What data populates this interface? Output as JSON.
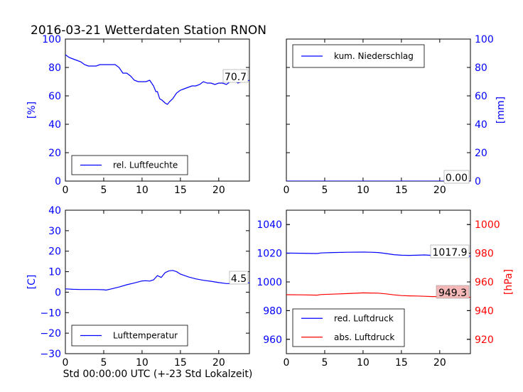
{
  "figure": {
    "title": "2016-03-21 Wetterdaten Station RNON",
    "xlabel": "Std 00:00:00 UTC (+-23 Std Lokalzeit)"
  },
  "colors": {
    "blue": "#0000ff",
    "red": "#ff0000"
  },
  "chart_data": [
    {
      "id": "humidity",
      "type": "line",
      "title": "",
      "xlabel": "",
      "ylabel": "[%]",
      "y_axis_side": "left",
      "xlim": [
        0,
        24
      ],
      "ylim": [
        0,
        100
      ],
      "x_ticks": [
        "0",
        "5",
        "10",
        "15",
        "20"
      ],
      "y_ticks": [
        "0",
        "20",
        "40",
        "60",
        "80",
        "100"
      ],
      "legend": {
        "placement": "lower-left",
        "entries": [
          "rel. Luftfeuchte"
        ]
      },
      "current_value": "70.7",
      "series": [
        {
          "name": "rel. Luftfeuchte",
          "color": "#0000ff",
          "x": [
            0,
            0.5,
            1,
            1.5,
            2,
            2.5,
            3,
            3.5,
            4,
            4.5,
            5,
            5.5,
            6,
            6.5,
            7,
            7.5,
            8,
            8.5,
            9,
            9.5,
            10,
            10.5,
            11,
            11.5,
            11.8,
            12,
            12.3,
            12.6,
            13,
            13.3,
            13.6,
            14,
            14.5,
            15,
            15.5,
            16,
            16.5,
            17,
            17.5,
            18,
            18.5,
            19,
            19.5,
            20,
            20.5,
            21,
            21.5,
            22,
            22.5,
            23,
            23.5,
            24
          ],
          "values": [
            89,
            87,
            86,
            85,
            84,
            82,
            81,
            81,
            81,
            82,
            82,
            82,
            82,
            82,
            80,
            76,
            76,
            74,
            71,
            70,
            70,
            70,
            71,
            67,
            63,
            63,
            58,
            57,
            55,
            54,
            56,
            58,
            62,
            64,
            65,
            66,
            67,
            67,
            68,
            70,
            69,
            69,
            68,
            69,
            69,
            68,
            70,
            71,
            69,
            70,
            70,
            71
          ]
        }
      ]
    },
    {
      "id": "precipitation",
      "type": "line",
      "title": "",
      "xlabel": "",
      "ylabel": "[mm]",
      "y_axis_side": "right",
      "xlim": [
        0,
        24
      ],
      "ylim": [
        0,
        100
      ],
      "x_ticks": [
        "0",
        "5",
        "10",
        "15",
        "20"
      ],
      "y_ticks": [
        "0",
        "20",
        "40",
        "60",
        "80",
        "100"
      ],
      "legend": {
        "placement": "top-left",
        "entries": [
          "kum. Niederschlag"
        ]
      },
      "current_value": "0.00",
      "series": [
        {
          "name": "kum. Niederschlag",
          "color": "#0000ff",
          "x": [
            0,
            24
          ],
          "values": [
            0,
            0
          ]
        }
      ]
    },
    {
      "id": "temperature",
      "type": "line",
      "title": "",
      "xlabel": "",
      "ylabel": "[C]",
      "y_axis_side": "left",
      "xlim": [
        0,
        24
      ],
      "ylim": [
        -30,
        40
      ],
      "x_ticks": [
        "0",
        "5",
        "10",
        "15",
        "20"
      ],
      "y_ticks": [
        "−30",
        "−20",
        "−10",
        "0",
        "10",
        "20",
        "30",
        "40"
      ],
      "legend": {
        "placement": "lower-left",
        "entries": [
          "Lufttemperatur"
        ]
      },
      "current_value": "4.5",
      "series": [
        {
          "name": "Lufttemperatur",
          "color": "#0000ff",
          "x": [
            0,
            1,
            2,
            3,
            4,
            5,
            5.3,
            6,
            7,
            8,
            9,
            10,
            10.5,
            11,
            11.5,
            12,
            12.5,
            13,
            13.5,
            14,
            14.5,
            15,
            16,
            17,
            18,
            19,
            20,
            21,
            22,
            23,
            24
          ],
          "values": [
            1.6,
            1.4,
            1.3,
            1.3,
            1.3,
            1.2,
            1.0,
            1.6,
            2.5,
            3.6,
            4.5,
            5.5,
            5.6,
            5.4,
            6.0,
            8.1,
            7.2,
            9.5,
            10.4,
            10.6,
            10.0,
            8.8,
            7.5,
            6.5,
            5.8,
            5.3,
            4.7,
            4.2,
            4.2,
            4.5,
            4.5
          ]
        }
      ]
    },
    {
      "id": "pressure",
      "type": "line",
      "title": "",
      "xlabel": "",
      "ylabel": "[hPa]",
      "dual_axis": true,
      "xlim": [
        0,
        24
      ],
      "ylim_left": [
        950,
        1050
      ],
      "ylim_right": [
        910,
        1010
      ],
      "x_ticks": [
        "0",
        "5",
        "10",
        "15",
        "20"
      ],
      "y_ticks_left": [
        "960",
        "980",
        "1000",
        "1020",
        "1040"
      ],
      "y_ticks_right": [
        "920",
        "940",
        "960",
        "980",
        "1000"
      ],
      "legend": {
        "placement": "lower-left",
        "entries": [
          "red. Luftdruck",
          "abs. Luftdruck"
        ]
      },
      "current_values": [
        "1017.9",
        "949.3"
      ],
      "series": [
        {
          "name": "red. Luftdruck",
          "color": "#0000ff",
          "axis": "left",
          "x": [
            0,
            2,
            4,
            4.5,
            6,
            8,
            10,
            11,
            12,
            13,
            14,
            15,
            16,
            17,
            18,
            19,
            20,
            21,
            22,
            23,
            24
          ],
          "values": [
            1020.1,
            1020.0,
            1019.8,
            1020.2,
            1020.5,
            1020.7,
            1020.8,
            1020.7,
            1020.5,
            1019.8,
            1019.0,
            1018.6,
            1018.5,
            1018.6,
            1018.8,
            1018.5,
            1018.2,
            1018.0,
            1018.0,
            1018.0,
            1017.9
          ]
        },
        {
          "name": "abs. Luftdruck",
          "color": "#ff0000",
          "axis": "right",
          "x": [
            0,
            2,
            4,
            4.5,
            6,
            8,
            10,
            11,
            12,
            13,
            14,
            15,
            16,
            17,
            18,
            19,
            20,
            21,
            22,
            23,
            24
          ],
          "values": [
            951.1,
            951.0,
            950.8,
            951.2,
            951.5,
            951.9,
            952.4,
            952.3,
            952.2,
            951.7,
            951.0,
            950.5,
            950.3,
            950.2,
            950.0,
            949.8,
            949.8,
            949.7,
            949.5,
            949.4,
            949.3
          ]
        }
      ]
    }
  ]
}
